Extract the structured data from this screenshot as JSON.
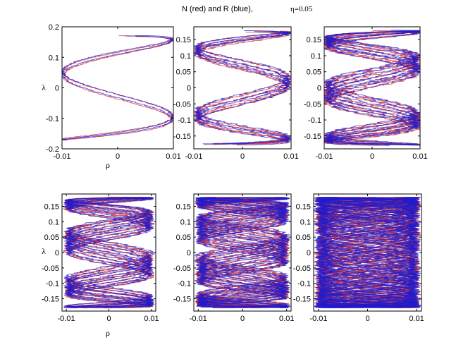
{
  "figure": {
    "title": "N (red) and R (blue),",
    "parameter": "η=0.05"
  },
  "colors": {
    "series_N": "#d81818",
    "series_R": "#1c1cd0",
    "axes": "#000000"
  },
  "chart_data": [
    {
      "type": "line",
      "panel": "top-left",
      "xlabel": "ρ",
      "ylabel": "λ",
      "xlim": [
        -0.01,
        0.01
      ],
      "ylim": [
        -0.2,
        0.2
      ],
      "xticks": [
        -0.01,
        0,
        0.01
      ],
      "yticks": [
        -0.2,
        -0.1,
        0,
        0.1,
        0.2
      ],
      "xtick_labels": [
        "-0.01",
        "0",
        "0.01"
      ],
      "ytick_labels": [
        "-0.2",
        "-0.1",
        "0",
        "0.1",
        "0.2"
      ],
      "curve": {
        "amplitude_rho": 0.01,
        "amplitude_lambda": 0.172,
        "half_turns": 3.5,
        "strands": 2,
        "phase_spread": 0.6,
        "noise": 0.0006
      },
      "series": [
        {
          "name": "N",
          "color": "#d81818"
        },
        {
          "name": "R",
          "color": "#1c1cd0"
        }
      ]
    },
    {
      "type": "line",
      "panel": "top-middle",
      "xlabel": "",
      "ylabel": "",
      "xlim": [
        -0.01,
        0.01
      ],
      "ylim": [
        -0.19,
        0.19
      ],
      "xticks": [
        -0.01,
        0,
        0.01
      ],
      "yticks": [
        -0.15,
        -0.1,
        -0.05,
        0,
        0.05,
        0.1,
        0.15
      ],
      "xtick_labels": [
        "-0.01",
        "0",
        "0.01"
      ],
      "ytick_labels": [
        "-0.15",
        "-0.1",
        "-0.05",
        "0",
        "0.05",
        "0.1",
        "0.15"
      ],
      "curve": {
        "amplitude_rho": 0.0095,
        "amplitude_lambda": 0.178,
        "half_turns": 5,
        "strands": 4,
        "phase_spread": 1.2,
        "noise": 0.0015
      },
      "series": [
        {
          "name": "N",
          "color": "#d81818"
        },
        {
          "name": "R",
          "color": "#1c1cd0"
        }
      ]
    },
    {
      "type": "line",
      "panel": "top-right",
      "xlabel": "",
      "ylabel": "",
      "xlim": [
        -0.01,
        0.01
      ],
      "ylim": [
        -0.19,
        0.19
      ],
      "xticks": [
        -0.01,
        0,
        0.01
      ],
      "yticks": [
        -0.15,
        -0.1,
        -0.05,
        0,
        0.05,
        0.1,
        0.15
      ],
      "xtick_labels": [
        "-0.01",
        "0",
        "0.01"
      ],
      "ytick_labels": [
        "-0.15",
        "-0.1",
        "-0.05",
        "0",
        "0.05",
        "0.1",
        "0.15"
      ],
      "curve": {
        "amplitude_rho": 0.0095,
        "amplitude_lambda": 0.18,
        "half_turns": 6,
        "strands": 7,
        "phase_spread": 2.4,
        "noise": 0.002
      },
      "series": [
        {
          "name": "N",
          "color": "#d81818"
        },
        {
          "name": "R",
          "color": "#1c1cd0"
        }
      ]
    },
    {
      "type": "line",
      "panel": "bottom-left",
      "xlabel": "ρ",
      "ylabel": "λ",
      "xlim": [
        -0.011,
        0.011
      ],
      "ylim": [
        -0.19,
        0.19
      ],
      "xticks": [
        -0.01,
        0,
        0.01
      ],
      "yticks": [
        -0.15,
        -0.1,
        -0.05,
        0,
        0.05,
        0.1,
        0.15
      ],
      "xtick_labels": [
        "-0.01",
        "0",
        "0.01"
      ],
      "ytick_labels": [
        "-0.15",
        "-0.1",
        "-0.05",
        "0",
        "0.05",
        "0.1",
        "0.15"
      ],
      "curve": {
        "amplitude_rho": 0.0098,
        "amplitude_lambda": 0.18,
        "half_turns": 7,
        "strands": 10,
        "phase_spread": 3.2,
        "noise": 0.002
      },
      "series": [
        {
          "name": "N",
          "color": "#d81818"
        },
        {
          "name": "R",
          "color": "#1c1cd0"
        }
      ]
    },
    {
      "type": "line",
      "panel": "bottom-middle",
      "xlabel": "",
      "ylabel": "",
      "xlim": [
        -0.011,
        0.011
      ],
      "ylim": [
        -0.19,
        0.19
      ],
      "xticks": [
        -0.01,
        0,
        0.01
      ],
      "yticks": [
        -0.15,
        -0.1,
        -0.05,
        0,
        0.05,
        0.1,
        0.15
      ],
      "xtick_labels": [
        "-0.01",
        "0",
        "0.01"
      ],
      "ytick_labels": [
        "-0.15",
        "-0.1",
        "-0.05",
        "0",
        "0.05",
        "0.1",
        "0.15"
      ],
      "curve": {
        "amplitude_rho": 0.0098,
        "amplitude_lambda": 0.18,
        "half_turns": 8,
        "strands": 14,
        "phase_spread": 4.5,
        "noise": 0.0022
      },
      "series": [
        {
          "name": "N",
          "color": "#d81818"
        },
        {
          "name": "R",
          "color": "#1c1cd0"
        }
      ]
    },
    {
      "type": "line",
      "panel": "bottom-right",
      "xlabel": "",
      "ylabel": "",
      "xlim": [
        -0.011,
        0.011
      ],
      "ylim": [
        -0.19,
        0.19
      ],
      "xticks": [
        -0.01,
        0,
        0.01
      ],
      "yticks": [
        -0.15,
        -0.1,
        -0.05,
        0,
        0.05,
        0.1,
        0.15
      ],
      "xtick_labels": [
        "-0.01",
        "0",
        "0.01"
      ],
      "ytick_labels": [
        "-0.15",
        "-0.1",
        "-0.05",
        "0",
        "0.05",
        "0.1",
        "0.15"
      ],
      "curve": {
        "amplitude_rho": 0.0098,
        "amplitude_lambda": 0.18,
        "half_turns": 9,
        "strands": 20,
        "phase_spread": 6.0,
        "noise": 0.0025
      },
      "series": [
        {
          "name": "N",
          "color": "#d81818"
        },
        {
          "name": "R",
          "color": "#1c1cd0"
        }
      ]
    }
  ]
}
